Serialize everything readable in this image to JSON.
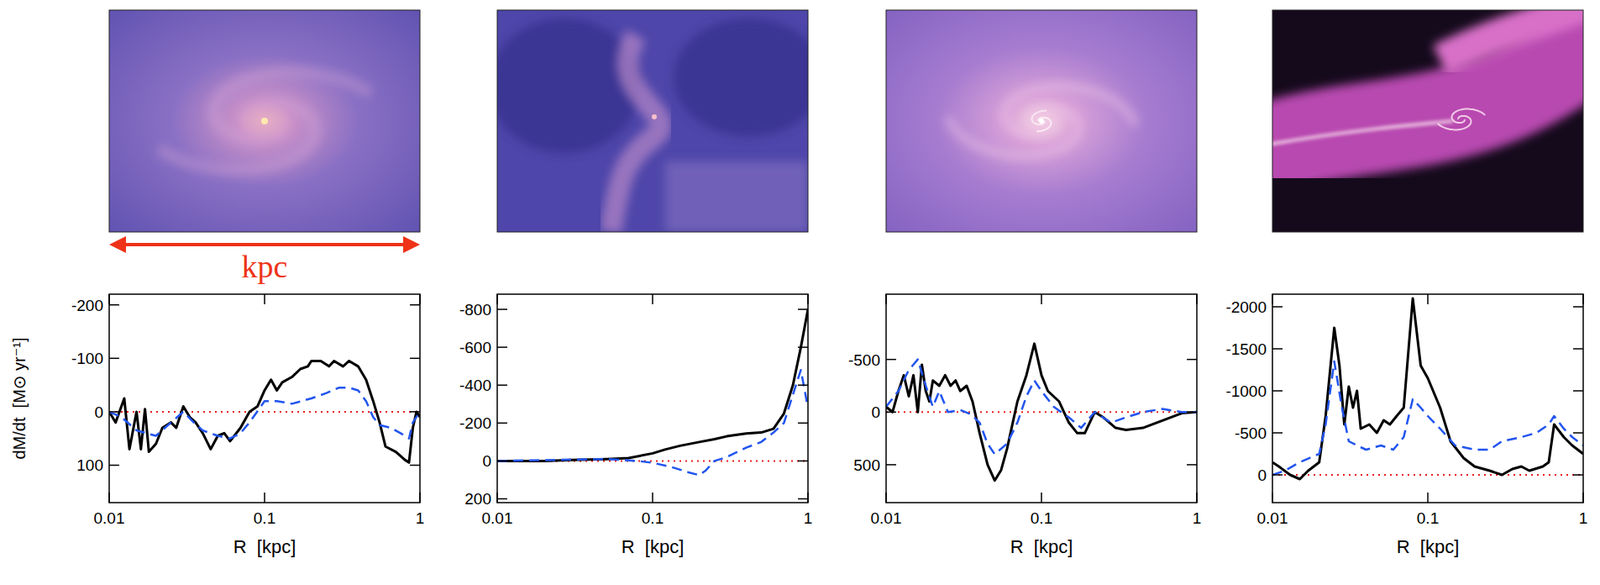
{
  "chart_data": [
    {
      "type": "line",
      "ylabel": "dM/dt  [M⊙ yr⁻¹]",
      "xlabel": "R  [kpc]",
      "annotations": [
        "kpc"
      ],
      "log": "x",
      "xlim": [
        0.01,
        1
      ],
      "xticks": [
        0.01,
        0.1,
        1
      ],
      "ylim": [
        170,
        -220
      ],
      "yticks": [
        -200,
        -100,
        0,
        100
      ],
      "hlines": [
        {
          "value": 0,
          "color": "#e82020",
          "line_style": "dotted"
        }
      ],
      "series": [
        {
          "color": "#000000",
          "line_style": "solid",
          "x": [
            0.01,
            0.011,
            0.0125,
            0.0135,
            0.015,
            0.016,
            0.017,
            0.018,
            0.02,
            0.022,
            0.025,
            0.027,
            0.03,
            0.033,
            0.036,
            0.04,
            0.045,
            0.05,
            0.055,
            0.06,
            0.07,
            0.08,
            0.09,
            0.1,
            0.11,
            0.12,
            0.13,
            0.15,
            0.17,
            0.19,
            0.2,
            0.23,
            0.26,
            0.28,
            0.32,
            0.35,
            0.4,
            0.45,
            0.5,
            0.55,
            0.6,
            0.7,
            0.8,
            0.85,
            0.9,
            0.95,
            1
          ],
          "values": [
            0,
            20,
            -25,
            70,
            0,
            70,
            -5,
            75,
            60,
            30,
            20,
            30,
            -10,
            10,
            20,
            40,
            70,
            45,
            40,
            55,
            30,
            0,
            -10,
            -40,
            -60,
            -40,
            -55,
            -65,
            -80,
            -85,
            -95,
            -95,
            -85,
            -95,
            -85,
            -95,
            -85,
            -60,
            -20,
            20,
            65,
            75,
            90,
            95,
            30,
            0,
            10
          ]
        },
        {
          "color": "#2255ee",
          "line_style": "dashed",
          "x": [
            0.01,
            0.012,
            0.015,
            0.02,
            0.025,
            0.03,
            0.035,
            0.04,
            0.05,
            0.06,
            0.07,
            0.08,
            0.1,
            0.12,
            0.15,
            0.2,
            0.25,
            0.3,
            0.35,
            0.4,
            0.45,
            0.5,
            0.55,
            0.65,
            0.75,
            0.85,
            0.9,
            1
          ],
          "values": [
            0,
            10,
            35,
            45,
            20,
            0,
            20,
            35,
            45,
            50,
            40,
            20,
            -20,
            -20,
            -15,
            -25,
            -35,
            -45,
            -45,
            -40,
            -20,
            10,
            25,
            30,
            40,
            50,
            20,
            0
          ]
        }
      ]
    },
    {
      "type": "line",
      "xlabel": "R  [kpc]",
      "log": "x",
      "xlim": [
        0.01,
        1
      ],
      "xticks": [
        0.01,
        0.1,
        1
      ],
      "ylim": [
        220,
        -880
      ],
      "yticks": [
        -800,
        -600,
        -400,
        -200,
        0,
        200
      ],
      "hlines": [
        {
          "value": 0,
          "color": "#e82020",
          "line_style": "dotted"
        }
      ],
      "series": [
        {
          "color": "#000000",
          "line_style": "solid",
          "x": [
            0.01,
            0.02,
            0.03,
            0.05,
            0.07,
            0.1,
            0.12,
            0.15,
            0.2,
            0.25,
            0.3,
            0.4,
            0.5,
            0.6,
            0.7,
            0.8,
            0.9,
            1
          ],
          "values": [
            0,
            0,
            -5,
            -10,
            -15,
            -40,
            -60,
            -80,
            -100,
            -115,
            -130,
            -145,
            -150,
            -170,
            -250,
            -400,
            -600,
            -800
          ]
        },
        {
          "color": "#2255ee",
          "line_style": "dashed",
          "x": [
            0.01,
            0.05,
            0.08,
            0.1,
            0.13,
            0.17,
            0.2,
            0.22,
            0.25,
            0.3,
            0.4,
            0.5,
            0.6,
            0.7,
            0.8,
            0.9,
            1
          ],
          "values": [
            0,
            -10,
            0,
            10,
            30,
            60,
            75,
            50,
            0,
            -20,
            -70,
            -100,
            -150,
            -200,
            -350,
            -480,
            -280
          ]
        }
      ]
    },
    {
      "type": "line",
      "xlabel": "R  [kpc]",
      "log": "x",
      "xlim": [
        0.01,
        1
      ],
      "xticks": [
        0.01,
        0.1,
        1
      ],
      "ylim": [
        860,
        -1120
      ],
      "yticks": [
        -500,
        0,
        500
      ],
      "hlines": [
        {
          "value": 0,
          "color": "#e82020",
          "line_style": "dotted"
        }
      ],
      "series": [
        {
          "color": "#000000",
          "line_style": "solid",
          "x": [
            0.01,
            0.011,
            0.012,
            0.013,
            0.014,
            0.015,
            0.016,
            0.017,
            0.018,
            0.019,
            0.02,
            0.022,
            0.024,
            0.026,
            0.028,
            0.03,
            0.033,
            0.036,
            0.04,
            0.045,
            0.05,
            0.055,
            0.06,
            0.07,
            0.08,
            0.09,
            0.1,
            0.11,
            0.13,
            0.15,
            0.17,
            0.19,
            0.22,
            0.25,
            0.3,
            0.35,
            0.45,
            0.6,
            0.8,
            1
          ],
          "values": [
            -50,
            0,
            -200,
            -350,
            -150,
            -350,
            0,
            -450,
            -200,
            -100,
            -300,
            -250,
            -350,
            -250,
            -300,
            -200,
            -250,
            -100,
            200,
            500,
            650,
            550,
            350,
            -100,
            -350,
            -650,
            -350,
            -200,
            -100,
            100,
            200,
            200,
            0,
            50,
            150,
            170,
            150,
            80,
            10,
            0
          ]
        },
        {
          "color": "#2255ee",
          "line_style": "dashed",
          "x": [
            0.01,
            0.012,
            0.014,
            0.016,
            0.018,
            0.02,
            0.022,
            0.025,
            0.03,
            0.035,
            0.04,
            0.045,
            0.05,
            0.06,
            0.07,
            0.08,
            0.09,
            0.1,
            0.12,
            0.15,
            0.18,
            0.22,
            0.28,
            0.35,
            0.45,
            0.6,
            0.8,
            1
          ],
          "values": [
            -50,
            -200,
            -400,
            -500,
            -250,
            -50,
            -200,
            0,
            -20,
            20,
            100,
            300,
            400,
            300,
            100,
            -150,
            -300,
            -200,
            -50,
            50,
            150,
            0,
            100,
            50,
            0,
            -30,
            0,
            0
          ]
        }
      ]
    },
    {
      "type": "line",
      "xlabel": "R  [kpc]",
      "log": "x",
      "xlim": [
        0.01,
        1
      ],
      "xticks": [
        0.01,
        0.1,
        1
      ],
      "ylim": [
        330,
        -2150
      ],
      "yticks": [
        -2000,
        -1500,
        -1000,
        -500,
        0
      ],
      "hlines": [
        {
          "value": 0,
          "color": "#e82020",
          "line_style": "dotted"
        }
      ],
      "series": [
        {
          "color": "#000000",
          "line_style": "solid",
          "x": [
            0.01,
            0.011,
            0.013,
            0.015,
            0.017,
            0.02,
            0.022,
            0.025,
            0.027,
            0.029,
            0.031,
            0.033,
            0.035,
            0.037,
            0.042,
            0.047,
            0.052,
            0.057,
            0.063,
            0.07,
            0.08,
            0.09,
            0.1,
            0.12,
            0.14,
            0.17,
            0.2,
            0.25,
            0.3,
            0.35,
            0.4,
            0.45,
            0.55,
            0.6,
            0.65,
            0.75,
            0.85,
            1
          ],
          "values": [
            -150,
            -100,
            0,
            50,
            -50,
            -150,
            -700,
            -1750,
            -1300,
            -600,
            -1050,
            -800,
            -1000,
            -550,
            -600,
            -500,
            -650,
            -600,
            -700,
            -800,
            -2100,
            -1300,
            -1150,
            -800,
            -400,
            -200,
            -100,
            -50,
            0,
            -70,
            -100,
            -50,
            -100,
            -150,
            -600,
            -450,
            -350,
            -250
          ]
        },
        {
          "color": "#2255ee",
          "line_style": "dashed",
          "x": [
            0.01,
            0.012,
            0.015,
            0.02,
            0.022,
            0.025,
            0.028,
            0.031,
            0.035,
            0.04,
            0.05,
            0.06,
            0.07,
            0.08,
            0.09,
            0.1,
            0.12,
            0.15,
            0.2,
            0.25,
            0.3,
            0.4,
            0.5,
            0.6,
            0.65,
            0.75,
            0.85,
            1
          ],
          "values": [
            0,
            -50,
            -150,
            -250,
            -600,
            -1350,
            -800,
            -400,
            -350,
            -300,
            -350,
            -300,
            -450,
            -900,
            -800,
            -700,
            -550,
            -350,
            -300,
            -300,
            -400,
            -450,
            -500,
            -600,
            -700,
            -550,
            -450,
            -350
          ]
        }
      ]
    }
  ]
}
